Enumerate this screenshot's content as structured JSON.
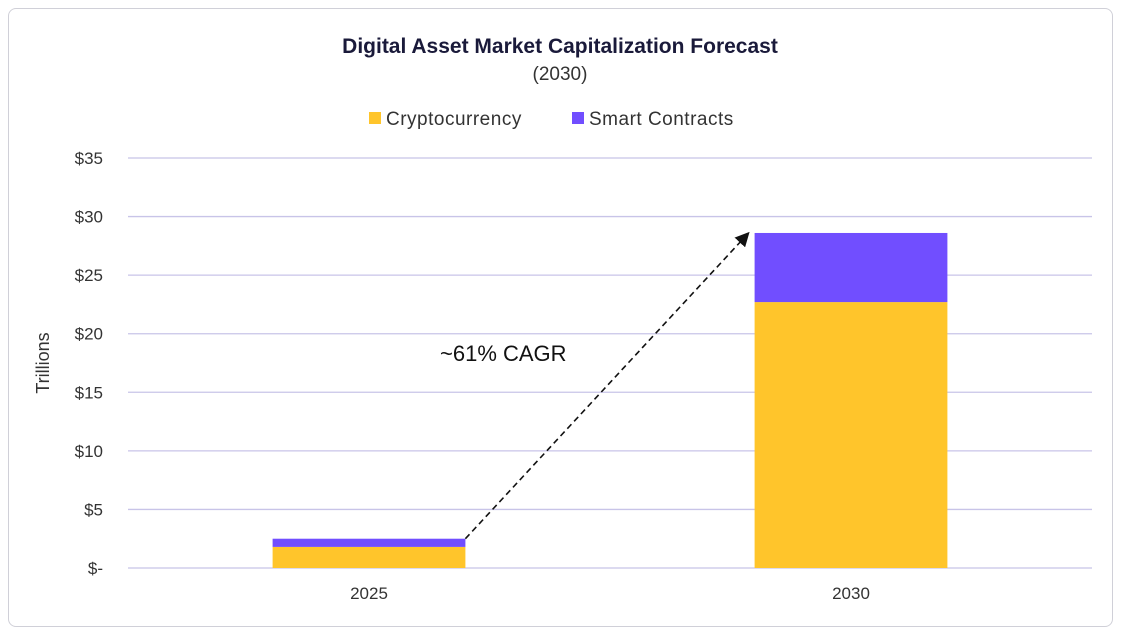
{
  "chart_data": {
    "type": "bar",
    "stacked": true,
    "title": "Digital Asset Market Capitalization Forecast",
    "subtitle": "(2030)",
    "xlabel": "",
    "ylabel": "Trillions",
    "categories": [
      "2025",
      "2030"
    ],
    "series": [
      {
        "name": "Cryptocurrency",
        "values": [
          1.8,
          22.7
        ],
        "color": "#FFC52B"
      },
      {
        "name": "Smart Contracts",
        "values": [
          0.7,
          5.9
        ],
        "color": "#714EFF"
      }
    ],
    "ylim": [
      0,
      35
    ],
    "yticks": [
      0,
      5,
      10,
      15,
      20,
      25,
      30,
      35
    ],
    "ytick_labels": [
      "$-",
      "$5",
      "$10",
      "$15",
      "$20",
      "$25",
      "$30",
      "$35"
    ],
    "grid": true,
    "legend_placement": "top-center",
    "annotation": {
      "text": "~61% CAGR",
      "arrow": "dashed, from top of 2025 bar to top of 2030 bar"
    },
    "gridline_color": "#C8C4E8"
  }
}
